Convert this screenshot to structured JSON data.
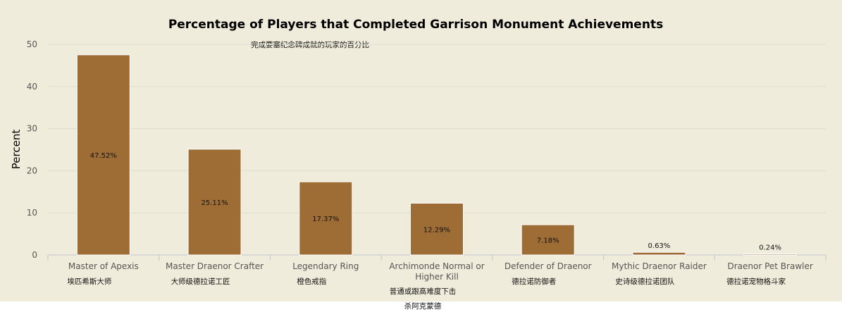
{
  "chart_data": {
    "type": "bar",
    "title": "Percentage of Players that Completed Garrison Monument Achievements",
    "subtitle": "完成要塞纪念碑成就的玩家的百分比",
    "xlabel": "",
    "ylabel": "Percent",
    "ylim": [
      0,
      50
    ],
    "yticks": [
      "0",
      "10",
      "20",
      "30",
      "40",
      "50"
    ],
    "grid": true,
    "legend": "none",
    "bar_color": "#9e6d36",
    "categories": [
      {
        "en": [
          "Master of Apexis"
        ],
        "cn": [
          "埃匹希斯大师"
        ]
      },
      {
        "en": [
          "Master Draenor Crafter"
        ],
        "cn": [
          "大师级德拉诺工匠"
        ]
      },
      {
        "en": [
          "Legendary Ring"
        ],
        "cn": [
          "橙色戒指"
        ]
      },
      {
        "en": [
          "Archimonde Normal or",
          "Higher Kill"
        ],
        "cn": [
          "普通或跟高难度下击",
          "杀阿克蒙德"
        ]
      },
      {
        "en": [
          "Defender of Draenor"
        ],
        "cn": [
          "德拉诺防御者"
        ]
      },
      {
        "en": [
          "Mythic Draenor Raider"
        ],
        "cn": [
          "史诗级德拉诺团队"
        ]
      },
      {
        "en": [
          "Draenor Pet Brawler"
        ],
        "cn": [
          "德拉诺宠物格斗家"
        ]
      }
    ],
    "values": [
      47.52,
      25.11,
      17.37,
      12.29,
      7.18,
      0.63,
      0.24
    ],
    "data_labels": [
      "47.52%",
      "25.11%",
      "17.37%",
      "12.29%",
      "7.18%",
      "0.63%",
      "0.24%"
    ]
  }
}
